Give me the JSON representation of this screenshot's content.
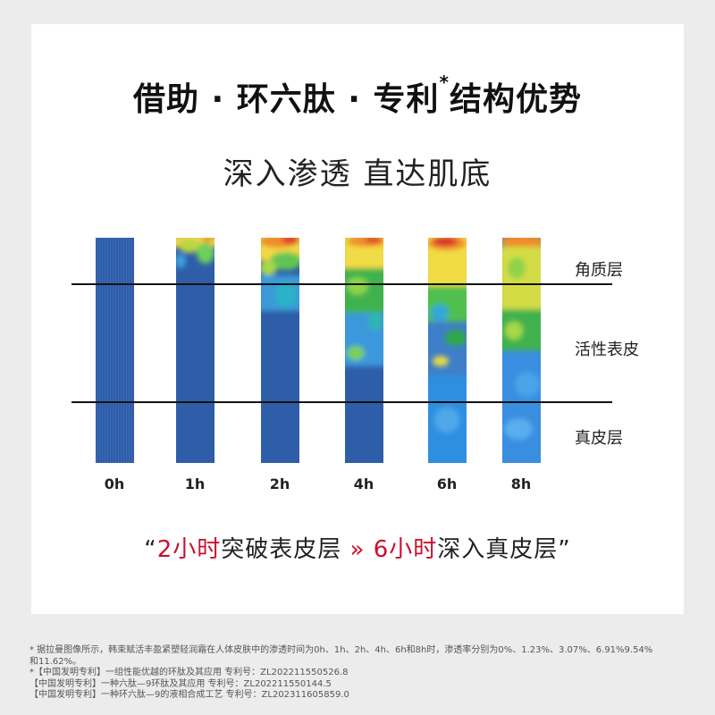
{
  "title": "借助 · 环六肽 · 专利",
  "title_sup": "*",
  "title_tail": "结构优势",
  "subtitle": "深入渗透 直达肌底",
  "columns": [
    "0h",
    "1h",
    "2h",
    "4h",
    "6h",
    "8h"
  ],
  "layers": [
    "角质层",
    "活性表皮",
    "真皮层"
  ],
  "claim": {
    "open_quote": "“",
    "part1_red": "2小时",
    "part1": "突破表皮层",
    "arrow": "»",
    "part2_red": "6小时",
    "part2": "深入真皮层",
    "close_quote": "”"
  },
  "notes": [
    "* 据拉曼图像所示，韩束赋活丰盈紧塑轻润霜在人体皮肤中的渗透时间为0h、1h、2h、4h、6h和8h时，渗透率分别为0%、1.23%、3.07%、6.91%9.54%",
    "和11.62%。",
    "*【中国发明专利】一组性能优越的环肽及其应用 专利号：ZL202211550526.8",
    "【中国发明专利】一种六肽—9环肽及其应用 专利号：ZL202211550144.5",
    "【中国发明专利】一种环六肽—9的液相合成工艺 专利号：ZL202311605859.0"
  ],
  "colors": {
    "background": "#ececec",
    "card": "#ffffff",
    "accent_red": "#c8102e",
    "column_blue": "#2f5ea8"
  }
}
